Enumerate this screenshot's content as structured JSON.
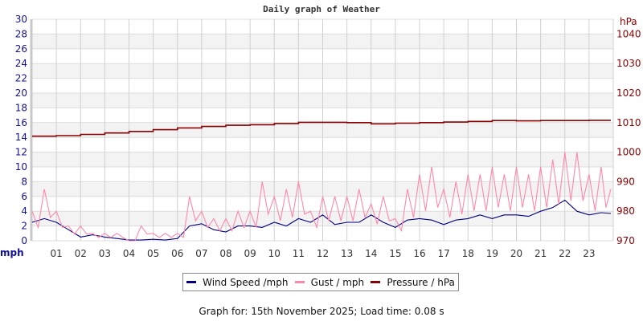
{
  "chart_data": {
    "type": "line",
    "title": "Daily graph of Weather",
    "ylabel_left": "mph",
    "ylabel_right": "hPa",
    "ylim_left": [
      0,
      30
    ],
    "ylim_right": [
      970,
      1045
    ],
    "left_ticks": [
      "0",
      "2",
      "4",
      "6",
      "8",
      "10",
      "12",
      "14",
      "16",
      "18",
      "20",
      "22",
      "24",
      "26",
      "28",
      "30"
    ],
    "right_ticks": [
      "970",
      "980",
      "990",
      "1000",
      "1010",
      "1020",
      "1030",
      "1040"
    ],
    "x_ticks": [
      "01",
      "02",
      "03",
      "04",
      "05",
      "06",
      "07",
      "08",
      "09",
      "10",
      "11",
      "12",
      "13",
      "14",
      "15",
      "16",
      "17",
      "18",
      "19",
      "20",
      "21",
      "22",
      "23"
    ],
    "xlim_hours": [
      0,
      24
    ],
    "grid": true,
    "legend_placement": "bottom",
    "series": [
      {
        "name": "Wind Speed /mph",
        "color": "#000080",
        "axis": "left",
        "x": [
          0,
          0.5,
          1,
          1.5,
          2,
          2.5,
          3,
          3.5,
          4,
          4.5,
          5,
          5.5,
          6,
          6.5,
          7,
          7.5,
          8,
          8.5,
          9,
          9.5,
          10,
          10.5,
          11,
          11.5,
          12,
          12.5,
          13,
          13.5,
          14,
          14.5,
          15,
          15.5,
          16,
          16.5,
          17,
          17.5,
          18,
          18.5,
          19,
          19.5,
          20,
          20.5,
          21,
          21.5,
          22,
          22.5,
          23,
          23.5,
          23.9
        ],
        "values": [
          2.5,
          3,
          2.5,
          1.5,
          0.5,
          0.8,
          0.5,
          0.3,
          0.1,
          0.1,
          0.2,
          0.1,
          0.3,
          2,
          2.3,
          1.5,
          1.2,
          2,
          2,
          1.8,
          2.5,
          2,
          3,
          2.5,
          3.5,
          2.2,
          2.5,
          2.5,
          3.5,
          2.5,
          1.8,
          2.8,
          3,
          2.8,
          2.2,
          2.8,
          3,
          3.5,
          3,
          3.5,
          3.5,
          3.3,
          4,
          4.5,
          5.5,
          4,
          3.5,
          3.8,
          3.7
        ]
      },
      {
        "name": "Gust / mph",
        "color": "#ff88aa",
        "axis": "left",
        "x": [
          0,
          0.5,
          1,
          1.5,
          2,
          2.5,
          3,
          3.5,
          4,
          4.5,
          5,
          5.5,
          6,
          6.5,
          7,
          7.5,
          8,
          8.5,
          9,
          9.5,
          10,
          10.5,
          11,
          11.5,
          12,
          12.5,
          13,
          13.5,
          14,
          14.5,
          15,
          15.5,
          16,
          16.5,
          17,
          17.5,
          18,
          18.5,
          19,
          19.5,
          20,
          20.5,
          21,
          21.5,
          22,
          22.5,
          23,
          23.5,
          23.9
        ],
        "values": [
          4,
          7,
          4,
          2,
          2,
          1,
          1,
          1,
          0,
          2,
          1,
          1,
          1,
          6,
          4,
          3,
          3,
          4,
          4,
          8,
          6,
          7,
          8,
          4,
          6,
          6,
          6,
          7,
          5,
          6,
          3,
          7,
          9,
          10,
          7,
          8,
          9,
          9,
          10,
          9,
          10,
          9,
          10,
          11,
          12,
          12,
          9,
          10,
          7
        ]
      },
      {
        "name": "Pressure / hPa",
        "color": "#8b0000",
        "axis": "right",
        "x": [
          0,
          1,
          2,
          3,
          4,
          5,
          6,
          7,
          8,
          9,
          10,
          11,
          12,
          13,
          14,
          15,
          16,
          17,
          18,
          19,
          20,
          21,
          22,
          23,
          23.9
        ],
        "values": [
          1005.4,
          1005.6,
          1006.0,
          1006.5,
          1007.0,
          1007.6,
          1008.2,
          1008.7,
          1009.1,
          1009.3,
          1009.7,
          1010.1,
          1010.1,
          1010.0,
          1009.6,
          1009.8,
          1010.0,
          1010.2,
          1010.4,
          1010.7,
          1010.6,
          1010.7,
          1010.7,
          1010.8,
          1010.8
        ]
      }
    ]
  },
  "footer": "Graph for: 15th November 2025; Load time: 0.08 s"
}
